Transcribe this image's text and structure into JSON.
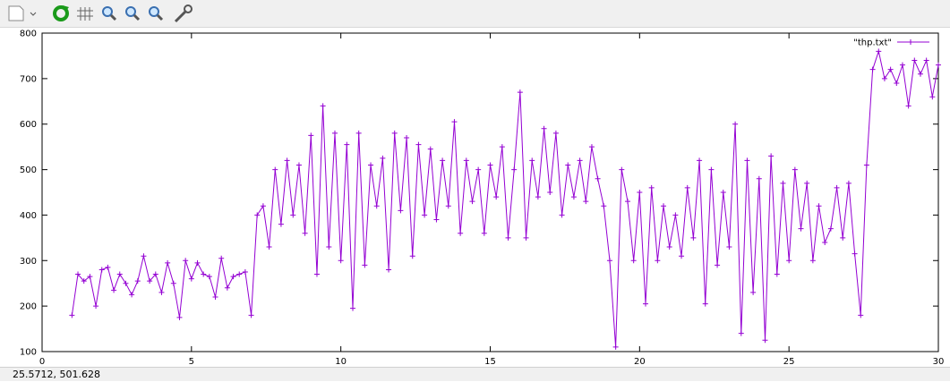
{
  "status_text": "25.5712, 501.628",
  "chart_data": {
    "type": "line",
    "xlim": [
      0,
      30
    ],
    "xticks": [
      0,
      5,
      10,
      15,
      20,
      25,
      30
    ],
    "ylim": [
      100,
      800
    ],
    "yticks": [
      100,
      200,
      300,
      400,
      500,
      600,
      700,
      800
    ],
    "legend": "top-right",
    "grid": false,
    "x": [
      1.0,
      1.2,
      1.4,
      1.6,
      1.8,
      2.0,
      2.2,
      2.4,
      2.6,
      2.8,
      3.0,
      3.2,
      3.4,
      3.6,
      3.8,
      4.0,
      4.2,
      4.4,
      4.6,
      4.8,
      5.0,
      5.2,
      5.4,
      5.6,
      5.8,
      6.0,
      6.2,
      6.4,
      6.6,
      6.8,
      7.0,
      7.2,
      7.4,
      7.6,
      7.8,
      8.0,
      8.2,
      8.4,
      8.6,
      8.8,
      9.0,
      9.2,
      9.4,
      9.6,
      9.8,
      10.0,
      10.2,
      10.4,
      10.6,
      10.8,
      11.0,
      11.2,
      11.4,
      11.6,
      11.8,
      12.0,
      12.2,
      12.4,
      12.6,
      12.8,
      13.0,
      13.2,
      13.4,
      13.6,
      13.8,
      14.0,
      14.2,
      14.4,
      14.6,
      14.8,
      15.0,
      15.2,
      15.4,
      15.6,
      15.8,
      16.0,
      16.2,
      16.4,
      16.6,
      16.8,
      17.0,
      17.2,
      17.4,
      17.6,
      17.8,
      18.0,
      18.2,
      18.4,
      18.6,
      18.8,
      19.0,
      19.2,
      19.4,
      19.6,
      19.8,
      20.0,
      20.2,
      20.4,
      20.6,
      20.8,
      21.0,
      21.2,
      21.4,
      21.6,
      21.8,
      22.0,
      22.2,
      22.4,
      22.6,
      22.8,
      23.0,
      23.2,
      23.4,
      23.6,
      23.8,
      24.0,
      24.2,
      24.4,
      24.6,
      24.8,
      25.0,
      25.2,
      25.4,
      25.6,
      25.8,
      26.0,
      26.2,
      26.4,
      26.6,
      26.8,
      27.0,
      27.2,
      27.4,
      27.6,
      27.8,
      28.0,
      28.2,
      28.4,
      28.6,
      28.8,
      29.0,
      29.2,
      29.4,
      29.6,
      29.8,
      30.0
    ],
    "series": [
      {
        "name": "\"thp.txt\"",
        "color": "#9400d3",
        "values": [
          180,
          270,
          255,
          265,
          200,
          280,
          285,
          235,
          270,
          250,
          225,
          255,
          310,
          255,
          270,
          230,
          295,
          250,
          175,
          300,
          260,
          295,
          270,
          265,
          220,
          305,
          240,
          265,
          270,
          275,
          180,
          400,
          420,
          330,
          500,
          380,
          520,
          400,
          510,
          360,
          575,
          270,
          640,
          330,
          580,
          300,
          555,
          195,
          580,
          290,
          510,
          420,
          525,
          280,
          580,
          410,
          570,
          310,
          555,
          400,
          545,
          390,
          520,
          420,
          605,
          360,
          520,
          430,
          500,
          360,
          510,
          440,
          550,
          350,
          500,
          670,
          350,
          520,
          440,
          590,
          450,
          580,
          400,
          510,
          440,
          520,
          430,
          550,
          480,
          420,
          300,
          110,
          500,
          430,
          300,
          450,
          205,
          460,
          300,
          420,
          330,
          400,
          310,
          460,
          350,
          520,
          205,
          500,
          290,
          450,
          330,
          600,
          140,
          520,
          230,
          480,
          125,
          530,
          270,
          470,
          300,
          500,
          370,
          470,
          300,
          420,
          340,
          370,
          460,
          350,
          470,
          315,
          180,
          510,
          720,
          760,
          700,
          720,
          690,
          730,
          640,
          740,
          710,
          740,
          660,
          730
        ]
      }
    ]
  }
}
